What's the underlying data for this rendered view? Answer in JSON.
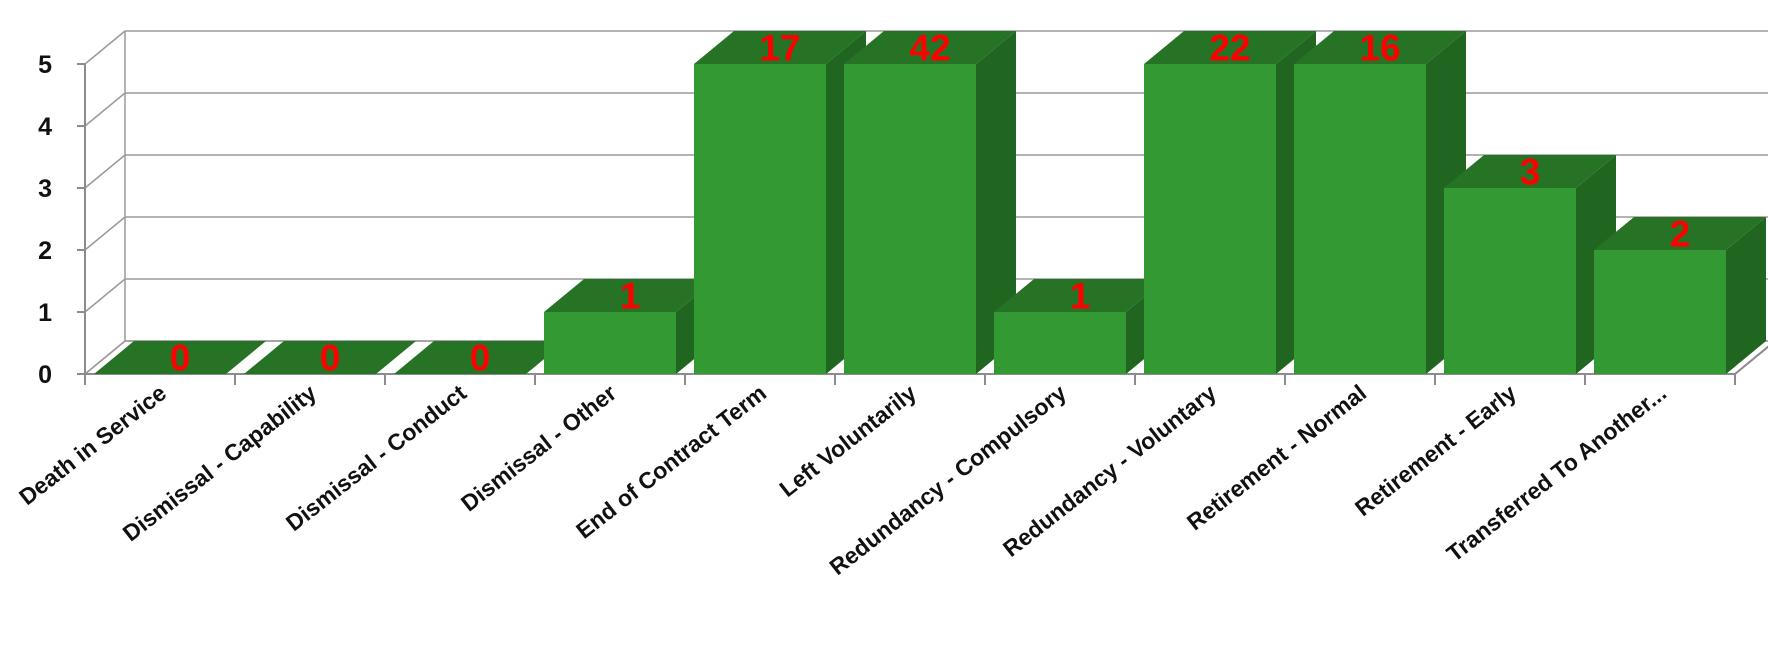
{
  "chart_data": {
    "type": "bar",
    "title": "",
    "xlabel": "",
    "ylabel": "",
    "ylim": [
      0,
      5
    ],
    "yticks": [
      "0",
      "1",
      "2",
      "3",
      "4",
      "5"
    ],
    "grid": true,
    "categories": [
      "Death in Service",
      "Dismissal - Capability",
      "Dismissal - Conduct",
      "Dismissal - Other",
      "End of Contract Term",
      "Left Voluntarily",
      "Redundancy - Compulsory",
      "Redundancy - Voluntary",
      "Retirement - Normal",
      "Retirement - Early",
      "Transferred To Another..."
    ],
    "values": [
      0,
      0,
      0,
      1,
      17,
      42,
      1,
      22,
      16,
      3,
      2
    ],
    "data_labels": [
      "0",
      "0",
      "0",
      "1",
      "17",
      "42",
      "1",
      "22",
      "16",
      "3",
      "2"
    ]
  },
  "colors": {
    "bar_front": "#339933",
    "bar_side": "#206620",
    "bar_top": "#267326",
    "label": "#ff0000",
    "grid": "#9a9a9a",
    "axis": "#8c8c8c"
  }
}
